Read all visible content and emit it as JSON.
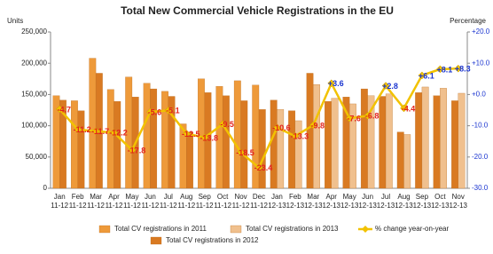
{
  "chart_data": {
    "type": "bar-line",
    "title": "Total New Commercial Vehicle Registrations in the EU",
    "y_label": "Units",
    "y2_label": "Percentage",
    "categories": [
      [
        "Jan",
        "11-12"
      ],
      [
        "Feb",
        "11-12"
      ],
      [
        "Mar",
        "11-12"
      ],
      [
        "Apr",
        "11-12"
      ],
      [
        "May",
        "11-12"
      ],
      [
        "Jun",
        "11-12"
      ],
      [
        "Jul",
        "11-12"
      ],
      [
        "Aug",
        "11-12"
      ],
      [
        "Sep",
        "11-12"
      ],
      [
        "Oct",
        "11-12"
      ],
      [
        "Nov",
        "11-12"
      ],
      [
        "Dec",
        "11-12"
      ],
      [
        "Jan",
        "12-13"
      ],
      [
        "Feb",
        "12-13"
      ],
      [
        "Mar",
        "12-13"
      ],
      [
        "Apr",
        "12-13"
      ],
      [
        "May",
        "12-13"
      ],
      [
        "Jun",
        "12-13"
      ],
      [
        "Jul",
        "12-13"
      ],
      [
        "Aug",
        "12-13"
      ],
      [
        "Sep",
        "12-13"
      ],
      [
        "Oct",
        "12-13"
      ],
      [
        "Nov",
        "12-13"
      ]
    ],
    "series": [
      {
        "name": "Total CV registrations in 2011",
        "type": "bar",
        "color": "#ee9a3a",
        "values": [
          148000,
          140000,
          208000,
          158000,
          178000,
          168000,
          155000,
          103000,
          175000,
          163000,
          172000,
          165000,
          null,
          null,
          null,
          null,
          null,
          null,
          null,
          null,
          null,
          null,
          null
        ]
      },
      {
        "name": "Total CV registrations in 2012",
        "type": "bar",
        "color": "#d97a22",
        "values": [
          141000,
          124000,
          184000,
          139000,
          146000,
          159000,
          147000,
          90000,
          153000,
          148000,
          140000,
          126000,
          141000,
          124000,
          184000,
          139000,
          146000,
          159000,
          147000,
          90000,
          153000,
          148000,
          140000
        ]
      },
      {
        "name": "Total CV registrations in 2013",
        "type": "bar",
        "color": "#f0c08e",
        "values": [
          null,
          null,
          null,
          null,
          null,
          null,
          null,
          null,
          null,
          null,
          null,
          null,
          126000,
          108000,
          166000,
          144000,
          135000,
          148000,
          151000,
          86000,
          162000,
          160000,
          152000
        ]
      },
      {
        "name": "% change year-on-year",
        "type": "line",
        "axis": "y2",
        "color": "#f2c200",
        "values": [
          -4.7,
          -11.2,
          -11.7,
          -12.2,
          -17.8,
          -5.6,
          -5.1,
          -12.5,
          -13.8,
          -9.5,
          -18.5,
          -23.4,
          -10.6,
          -13.3,
          -9.8,
          3.6,
          -7.6,
          -6.8,
          2.8,
          -4.4,
          6.1,
          8.1,
          8.3
        ],
        "value_labels": [
          "-4.7",
          "-11.2",
          "-11.7",
          "-12.2",
          "-17.8",
          "-5.6",
          "-5.1",
          "-12.5",
          "-13.8",
          "-9.5",
          "-18.5",
          "-23.4",
          "-10.6",
          "-13.3",
          "-9.8",
          "+3.6",
          "-7.6",
          "-6.8",
          "+2.8",
          "-4.4",
          "+6.1",
          "+8.1",
          "+8.3"
        ]
      }
    ],
    "label_colors": {
      "negative": "#e3221c",
      "positive": "#1b35d0"
    },
    "ylim": [
      0,
      250000
    ],
    "yticks": [
      {
        "value": 0,
        "label": "0"
      },
      {
        "value": 50000,
        "label": "50,000"
      },
      {
        "value": 100000,
        "label": "100,000"
      },
      {
        "value": 150000,
        "label": "150,000"
      },
      {
        "value": 200000,
        "label": "200,000"
      },
      {
        "value": 250000,
        "label": "250,000"
      }
    ],
    "y2lim": [
      -30,
      20
    ],
    "y2ticks": [
      {
        "value": -30,
        "label": "-30.0"
      },
      {
        "value": -20,
        "label": "-20.0"
      },
      {
        "value": -10,
        "label": "-10.0"
      },
      {
        "value": 0,
        "label": "+0.0"
      },
      {
        "value": 10,
        "label": "+10.0"
      },
      {
        "value": 20,
        "label": "+20.0"
      }
    ],
    "grid": false
  }
}
